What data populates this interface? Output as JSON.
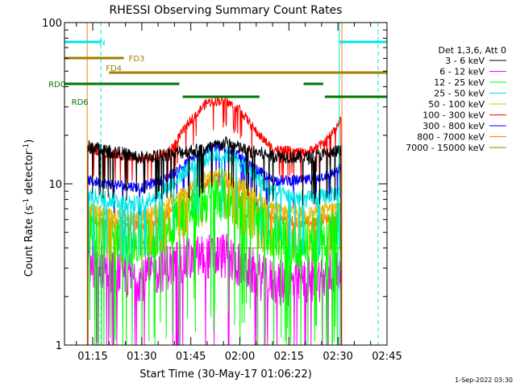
{
  "chart_data": {
    "type": "line",
    "title": "RHESSI Observing Summary Count Rates",
    "xlabel": "Start Time (30-May-17 01:06:22)",
    "ylabel": "Count Rate (s",
    "ylabel_sup": "-1",
    "ylabel_rest": " detector",
    "ylabel_sup2": "-1",
    "ylabel_close": ")",
    "y_scale": "log",
    "ylim": [
      1,
      100
    ],
    "xlim_minutes": [
      6.37,
      105.0
    ],
    "y_ticks": [
      {
        "value": 1,
        "label": "1"
      },
      {
        "value": 10,
        "label": "10"
      },
      {
        "value": 100,
        "label": "100"
      }
    ],
    "x_ticks": [
      {
        "minute": 15,
        "label": "01:15"
      },
      {
        "minute": 30,
        "label": "01:30"
      },
      {
        "minute": 45,
        "label": "01:45"
      },
      {
        "minute": 60,
        "label": "02:00"
      },
      {
        "minute": 75,
        "label": "02:15"
      },
      {
        "minute": 90,
        "label": "02:30"
      },
      {
        "minute": 105,
        "label": "02:45"
      }
    ],
    "legend_title": "Det 1,3,6, Att 0",
    "legend_position": "right",
    "footer": "1-Sep-2022 03:30",
    "data_start_min": 13.5,
    "data_end_min": 91.0,
    "series": [
      {
        "name": "3 - 6 keV",
        "color": "#000000",
        "noise": 0.1,
        "points": [
          [
            13.5,
            17
          ],
          [
            20,
            16
          ],
          [
            30,
            14.5
          ],
          [
            40,
            15.5
          ],
          [
            50,
            16.5
          ],
          [
            56,
            18
          ],
          [
            62,
            16
          ],
          [
            70,
            15
          ],
          [
            80,
            14.5
          ],
          [
            88,
            15.5
          ],
          [
            91,
            16
          ]
        ]
      },
      {
        "name": "6 - 12 keV",
        "color": "#ff00ff",
        "noise": 0.34,
        "points": [
          [
            13.5,
            3.2
          ],
          [
            20,
            3
          ],
          [
            25,
            2.7
          ],
          [
            30,
            2.6
          ],
          [
            40,
            3.2
          ],
          [
            48,
            3.5
          ],
          [
            55,
            3.6
          ],
          [
            62,
            3
          ],
          [
            68,
            2.5
          ],
          [
            75,
            2.4
          ],
          [
            85,
            2.6
          ],
          [
            91,
            2.9
          ]
        ]
      },
      {
        "name": "12 - 25 keV",
        "color": "#00ff00",
        "noise": 0.36,
        "points": [
          [
            13.5,
            5.5
          ],
          [
            20,
            5
          ],
          [
            28,
            4.3
          ],
          [
            35,
            5
          ],
          [
            42,
            6.5
          ],
          [
            50,
            8
          ],
          [
            55,
            8.5
          ],
          [
            62,
            7
          ],
          [
            70,
            4.8
          ],
          [
            78,
            4.2
          ],
          [
            85,
            4.8
          ],
          [
            91,
            5.5
          ]
        ]
      },
      {
        "name": "25 - 50 keV",
        "color": "#00e5e5",
        "noise": 0.12,
        "points": [
          [
            13.5,
            8.5
          ],
          [
            20,
            8
          ],
          [
            30,
            7.5
          ],
          [
            38,
            9.5
          ],
          [
            45,
            13
          ],
          [
            52,
            15
          ],
          [
            57,
            15
          ],
          [
            63,
            12
          ],
          [
            70,
            9
          ],
          [
            80,
            8
          ],
          [
            88,
            8.5
          ],
          [
            91,
            9
          ]
        ]
      },
      {
        "name": "50 - 100 keV",
        "color": "#e6b800",
        "noise": 0.1,
        "points": [
          [
            13.5,
            7
          ],
          [
            20,
            6.5
          ],
          [
            30,
            6.2
          ],
          [
            38,
            7.5
          ],
          [
            45,
            9.5
          ],
          [
            52,
            11.5
          ],
          [
            57,
            11
          ],
          [
            63,
            9
          ],
          [
            70,
            7
          ],
          [
            80,
            6.5
          ],
          [
            88,
            7
          ],
          [
            91,
            7.3
          ]
        ]
      },
      {
        "name": "100 - 300 keV",
        "color": "#ff0000",
        "noise": 0.07,
        "points": [
          [
            13.5,
            16.5
          ],
          [
            20,
            15.5
          ],
          [
            30,
            14
          ],
          [
            38,
            15.5
          ],
          [
            45,
            25
          ],
          [
            50,
            32
          ],
          [
            55,
            33
          ],
          [
            60,
            29
          ],
          [
            65,
            21
          ],
          [
            70,
            16.5
          ],
          [
            80,
            15.5
          ],
          [
            86,
            18
          ],
          [
            91,
            25
          ]
        ]
      },
      {
        "name": "300 - 800 keV",
        "color": "#0000ff",
        "noise": 0.08,
        "points": [
          [
            13.5,
            10.5
          ],
          [
            20,
            10
          ],
          [
            30,
            9.5
          ],
          [
            38,
            11
          ],
          [
            45,
            14
          ],
          [
            52,
            17
          ],
          [
            57,
            16.5
          ],
          [
            63,
            13
          ],
          [
            70,
            10.5
          ],
          [
            80,
            10.5
          ],
          [
            88,
            11.5
          ],
          [
            91,
            12.5
          ]
        ]
      },
      {
        "name": "800 - 7000 keV",
        "color": "#ff8000",
        "noise": 0.09,
        "points": [
          [
            13.5,
            6
          ],
          [
            20,
            5.7
          ],
          [
            30,
            5.5
          ],
          [
            38,
            6.5
          ],
          [
            45,
            8.5
          ],
          [
            52,
            10.5
          ],
          [
            57,
            10
          ],
          [
            63,
            8
          ],
          [
            70,
            6.2
          ],
          [
            80,
            5.7
          ],
          [
            88,
            6.2
          ],
          [
            91,
            6.8
          ]
        ]
      },
      {
        "name": "7000 - 15000 keV",
        "color": "#a08000",
        "noise": 0.0,
        "points": [
          [
            13.5,
            4
          ],
          [
            91,
            4
          ]
        ]
      }
    ],
    "status_bars": [
      {
        "label": "N",
        "color": "#00e5e5",
        "label_minute": 17.0,
        "level": 0.94,
        "segments": [
          [
            6.37,
            17.5
          ],
          [
            90.5,
            105.0
          ]
        ]
      },
      {
        "label": "FD3",
        "color": "#a08000",
        "label_minute": 26.0,
        "level": 0.89,
        "segments": [
          [
            6.37,
            24.5
          ]
        ]
      },
      {
        "label": "FD4",
        "color": "#a08000",
        "label_minute": 19.0,
        "level": 0.845,
        "segments": [
          [
            20.0,
            105.0
          ]
        ]
      },
      {
        "label": "RD0",
        "color": "#007700",
        "label_minute": 1.5,
        "level": 0.81,
        "segments": [
          [
            6.37,
            41.5
          ],
          [
            79.5,
            85.5
          ]
        ]
      },
      {
        "label": "RD6",
        "color": "#007700",
        "label_minute": 8.5,
        "level": 0.77,
        "segments": [
          [
            42.5,
            66.0
          ],
          [
            86.0,
            105.0
          ]
        ]
      }
    ],
    "markers": [
      {
        "type": "vline_dashed",
        "minute": 17.5,
        "color": "#00e5e5"
      },
      {
        "type": "vline_solid",
        "minute": 90.4,
        "color": "#00e5e5"
      },
      {
        "type": "vline_dashed",
        "minute": 102.3,
        "color": "#00e5e5"
      },
      {
        "type": "vline_solid",
        "minute": 13.3,
        "color": "#ff8000"
      },
      {
        "type": "vline_solid",
        "minute": 91.2,
        "color": "#ff8000"
      }
    ]
  }
}
